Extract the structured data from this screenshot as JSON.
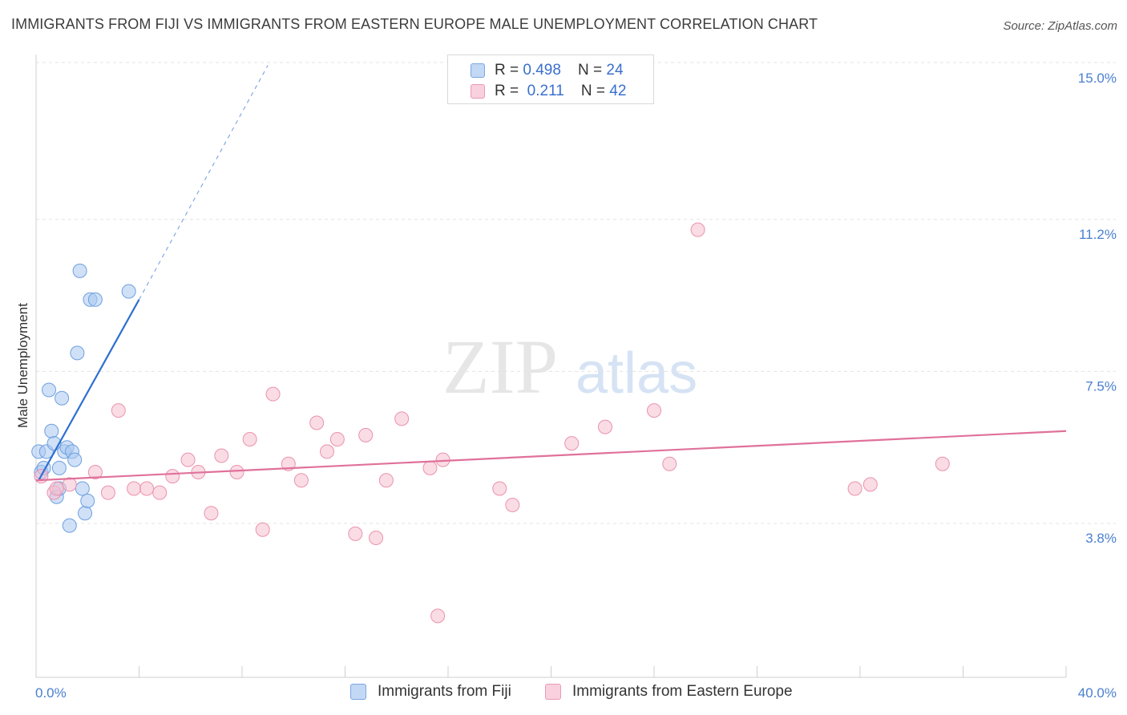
{
  "title": "IMMIGRANTS FROM FIJI VS IMMIGRANTS FROM EASTERN EUROPE MALE UNEMPLOYMENT CORRELATION CHART",
  "source": "Source: ZipAtlas.com",
  "watermark": {
    "zip": "ZIP",
    "atlas": "atlas"
  },
  "colors": {
    "fiji_fill": "#a9c8f0",
    "fiji_stroke": "#6e9fe0",
    "fiji_line": "#2d6fd1",
    "ee_fill": "#f6bfd0",
    "ee_stroke": "#ea93ae",
    "ee_line": "#e0719a",
    "grid": "#e3e3e3",
    "tick_text": "#4a7fd0"
  },
  "legend": {
    "fiji": {
      "r_label": "R = ",
      "r_value": "0.498",
      "n_label": "N = ",
      "n_value": "24"
    },
    "ee": {
      "r_label": "R = ",
      "r_value": " 0.211",
      "n_label": "N = ",
      "n_value": "42"
    }
  },
  "chart_data": {
    "type": "scatter",
    "title": "IMMIGRANTS FROM FIJI VS IMMIGRANTS FROM EASTERN EUROPE MALE UNEMPLOYMENT CORRELATION CHART",
    "xlabel": "",
    "ylabel": "Male Unemployment",
    "xlim": [
      0,
      40
    ],
    "ylim": [
      0,
      15.5
    ],
    "x_tick_labels": [
      "0.0%",
      "40.0%"
    ],
    "y_ticks": [
      {
        "value": 15.0,
        "label": "15.0%"
      },
      {
        "value": 11.2,
        "label": "11.2%"
      },
      {
        "value": 7.5,
        "label": "7.5%"
      },
      {
        "value": 3.8,
        "label": "3.8%"
      }
    ],
    "legend_position": "bottom",
    "series": [
      {
        "name": "Immigrants from Fiji",
        "r": 0.498,
        "n": 24,
        "trend": {
          "x0": 0.1,
          "y0": 5.2,
          "x1": 4.0,
          "y1": 9.6,
          "dash_to_x": 9.0,
          "dash_to_y": 15.3
        },
        "points": [
          [
            0.1,
            5.9
          ],
          [
            0.2,
            5.4
          ],
          [
            0.3,
            5.5
          ],
          [
            0.4,
            5.9
          ],
          [
            0.5,
            7.4
          ],
          [
            0.6,
            6.4
          ],
          [
            0.7,
            6.1
          ],
          [
            0.8,
            4.8
          ],
          [
            0.9,
            5.5
          ],
          [
            1.0,
            7.2
          ],
          [
            1.1,
            5.9
          ],
          [
            1.2,
            6.0
          ],
          [
            1.3,
            4.1
          ],
          [
            1.4,
            5.9
          ],
          [
            1.5,
            5.7
          ],
          [
            1.6,
            8.3
          ],
          [
            1.7,
            10.3
          ],
          [
            1.8,
            5.0
          ],
          [
            1.9,
            4.4
          ],
          [
            2.0,
            4.7
          ],
          [
            2.1,
            9.6
          ],
          [
            2.3,
            9.6
          ],
          [
            3.6,
            9.8
          ],
          [
            0.9,
            5.0
          ]
        ]
      },
      {
        "name": "Immigrants from Eastern Europe",
        "r": 0.211,
        "n": 42,
        "trend": {
          "x0": 0.0,
          "y0": 5.2,
          "x1": 40.0,
          "y1": 6.4
        },
        "points": [
          [
            0.2,
            5.3
          ],
          [
            0.7,
            4.9
          ],
          [
            1.3,
            5.1
          ],
          [
            2.3,
            5.4
          ],
          [
            2.8,
            4.9
          ],
          [
            3.2,
            6.9
          ],
          [
            3.8,
            5.0
          ],
          [
            4.3,
            5.0
          ],
          [
            4.8,
            4.9
          ],
          [
            5.3,
            5.3
          ],
          [
            5.9,
            5.7
          ],
          [
            6.3,
            5.4
          ],
          [
            6.8,
            4.4
          ],
          [
            7.2,
            5.8
          ],
          [
            7.8,
            5.4
          ],
          [
            8.3,
            6.2
          ],
          [
            8.8,
            4.0
          ],
          [
            9.2,
            7.3
          ],
          [
            9.8,
            5.6
          ],
          [
            10.3,
            5.2
          ],
          [
            10.9,
            6.6
          ],
          [
            11.3,
            5.9
          ],
          [
            11.7,
            6.2
          ],
          [
            12.4,
            3.9
          ],
          [
            12.8,
            6.3
          ],
          [
            13.2,
            3.8
          ],
          [
            13.6,
            5.2
          ],
          [
            14.2,
            6.7
          ],
          [
            15.3,
            5.5
          ],
          [
            15.6,
            1.9
          ],
          [
            15.8,
            5.7
          ],
          [
            18.0,
            5.0
          ],
          [
            18.5,
            4.6
          ],
          [
            20.8,
            6.1
          ],
          [
            22.1,
            6.5
          ],
          [
            24.0,
            6.9
          ],
          [
            24.6,
            5.6
          ],
          [
            25.7,
            11.3
          ],
          [
            31.8,
            5.0
          ],
          [
            32.4,
            5.1
          ],
          [
            35.2,
            5.6
          ],
          [
            0.8,
            5.0
          ]
        ]
      }
    ]
  }
}
